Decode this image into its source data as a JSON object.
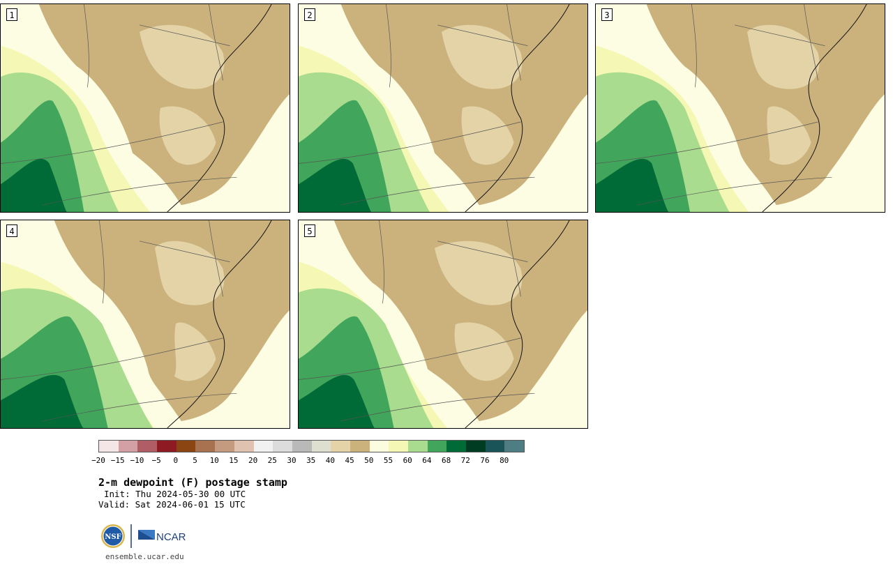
{
  "title": "2-m dewpoint (F) postage stamp",
  "init": "Init: Thu 2024-05-30 00 UTC",
  "valid": "Valid: Sat 2024-06-01 15 UTC",
  "url": "ensemble.ucar.edu",
  "logos": {
    "nsf": "NSF",
    "ncar": "NCAR"
  },
  "members": [
    "1",
    "2",
    "3",
    "4",
    "5"
  ],
  "colorbar": {
    "ticks": [
      "−20",
      "−15",
      "−10",
      "−5",
      "0",
      "5",
      "10",
      "15",
      "20",
      "25",
      "30",
      "35",
      "40",
      "45",
      "50",
      "55",
      "60",
      "64",
      "68",
      "72",
      "76",
      "80"
    ],
    "colors": [
      "#f4e6e6",
      "#d3a0a5",
      "#b05d66",
      "#8e1b24",
      "#8b4513",
      "#a87250",
      "#c49b7f",
      "#dfc2b0",
      "#f1f1f1",
      "#dcdcdc",
      "#b9b9b9",
      "#dfdfcf",
      "#e3d3a7",
      "#cbb27c",
      "#fcfcdf",
      "#f4f8b4",
      "#a9dc8e",
      "#41a65b",
      "#006b36",
      "#003c22",
      "#1b5458",
      "#4e7d83"
    ]
  },
  "legend_colors": {
    "land_dry": "#cbb27c",
    "land_tan": "#e3d3a7",
    "light_yellow": "#fdfde3",
    "yellow": "#f4f8b4",
    "light_green": "#a9dc8e",
    "green": "#41a65b",
    "dark_green": "#006b36"
  }
}
